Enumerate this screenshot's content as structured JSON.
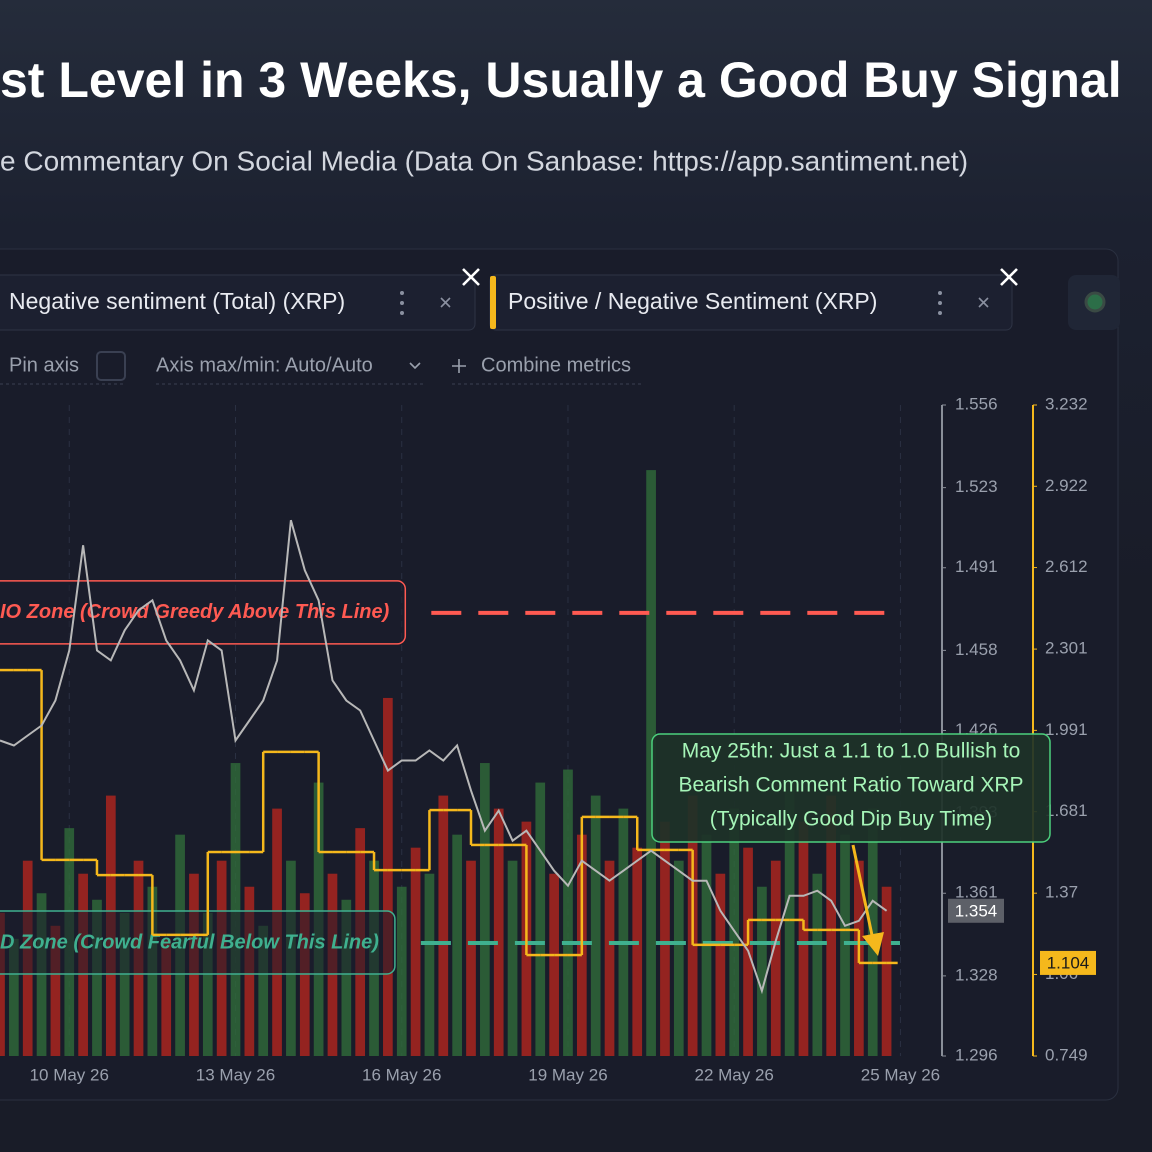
{
  "title": "st Level in 3 Weeks, Usually a Good Buy Signal",
  "subtitle": "e Commentary On Social Media (Data On Sanbase: https://app.santiment.net)",
  "toolbar": {
    "pin_axis": "Pin axis",
    "axis_minmax": "Axis max/min: Auto/Auto",
    "combine": "Combine metrics"
  },
  "callout": {
    "lines": [
      "May 25th: Just a 1.1 to 1.0 Bullish to",
      "Bearish Comment Ratio Toward XRP",
      "(Typically Good Dip Buy Time)"
    ]
  },
  "chart_data": {
    "type": "line",
    "x": [
      0,
      1,
      2,
      3,
      4,
      5,
      6,
      7,
      8,
      9,
      10,
      11,
      12,
      13,
      14,
      15,
      16,
      17,
      18,
      19,
      20,
      21,
      22,
      23,
      24,
      25,
      26,
      27,
      28,
      29,
      30,
      31,
      32,
      33,
      34,
      35,
      36,
      37,
      38,
      39,
      40,
      41,
      42,
      43,
      44,
      45,
      46,
      47,
      48,
      49,
      50,
      51,
      52,
      53,
      54,
      55,
      56,
      57,
      58,
      59,
      60,
      61,
      62,
      63,
      64
    ],
    "xlim": [
      0,
      68
    ],
    "xticks": [
      {
        "value": 5,
        "label": "10 May 26"
      },
      {
        "value": 17,
        "label": "13 May 26"
      },
      {
        "value": 29,
        "label": "16 May 26"
      },
      {
        "value": 41,
        "label": "19 May 26"
      },
      {
        "value": 53,
        "label": "22 May 26"
      },
      {
        "value": 65,
        "label": "25 May 26"
      }
    ],
    "ylim": [
      1.296,
      1.556
    ],
    "yticks": [
      1.296,
      1.328,
      1.361,
      1.393,
      1.426,
      1.458,
      1.491,
      1.523,
      1.556
    ],
    "y2lim": [
      0.749,
      3.232
    ],
    "y2ticks": [
      0.749,
      1.06,
      1.37,
      1.681,
      1.991,
      2.301,
      2.612,
      2.922,
      3.232
    ],
    "y3lim": [
      0,
      100
    ],
    "grid": true,
    "series": [
      {
        "name": "Negative sentiment (Total) (XRP)",
        "type": "bar",
        "axis": "y3",
        "colors": [
          "#b3261e",
          "#2f6b3a"
        ],
        "values": [
          22,
          18,
          30,
          25,
          20,
          35,
          28,
          24,
          40,
          22,
          30,
          26,
          18,
          34,
          28,
          22,
          30,
          45,
          26,
          20,
          38,
          30,
          25,
          42,
          28,
          24,
          35,
          30,
          55,
          26,
          32,
          28,
          40,
          34,
          30,
          45,
          38,
          30,
          36,
          42,
          28,
          44,
          34,
          40,
          30,
          38,
          32,
          90,
          36,
          30,
          40,
          34,
          28,
          38,
          32,
          26,
          30,
          42,
          36,
          28,
          40,
          34,
          30,
          38,
          26
        ]
      },
      {
        "name": "Positive / Negative Sentiment (XRP)",
        "type": "step",
        "axis": "y2",
        "color": "#f5b81c",
        "values": [
          2.221,
          2.221,
          2.221,
          1.497,
          1.497,
          1.497,
          1.497,
          1.439,
          1.439,
          1.439,
          1.439,
          1.211,
          1.211,
          1.211,
          1.211,
          1.527,
          1.527,
          1.527,
          1.527,
          1.909,
          1.909,
          1.909,
          1.909,
          1.527,
          1.527,
          1.527,
          1.527,
          1.458,
          1.458,
          1.458,
          1.458,
          1.687,
          1.687,
          1.687,
          1.554,
          1.554,
          1.554,
          1.554,
          1.134,
          1.134,
          1.134,
          1.134,
          1.661,
          1.661,
          1.661,
          1.661,
          1.535,
          1.535,
          1.535,
          1.535,
          1.173,
          1.173,
          1.173,
          1.173,
          1.268,
          1.268,
          1.268,
          1.268,
          1.23,
          1.23,
          1.23,
          1.23,
          1.104,
          1.104,
          1.104
        ]
      },
      {
        "type": "line",
        "axis": "y",
        "color": "#b8b8b8",
        "values": [
          1.422,
          1.42,
          1.424,
          1.428,
          1.438,
          1.458,
          1.5,
          1.458,
          1.454,
          1.466,
          1.474,
          1.478,
          1.462,
          1.454,
          1.442,
          1.462,
          1.458,
          1.422,
          1.43,
          1.438,
          1.454,
          1.51,
          1.49,
          1.478,
          1.446,
          1.438,
          1.434,
          1.422,
          1.41,
          1.414,
          1.414,
          1.418,
          1.414,
          1.42,
          1.402,
          1.386,
          1.394,
          1.382,
          1.386,
          1.378,
          1.37,
          1.364,
          1.374,
          1.37,
          1.366,
          1.37,
          1.374,
          1.378,
          1.374,
          1.37,
          1.366,
          1.366,
          1.354,
          1.346,
          1.338,
          1.322,
          1.342,
          1.36,
          1.36,
          1.362,
          1.358,
          1.348,
          1.35,
          1.358,
          1.354
        ]
      }
    ],
    "annotations": [
      {
        "text": "IO Zone (Crowd Greedy Above This Line)",
        "y2": 2.439,
        "color": "#ff5a52"
      },
      {
        "text": "D Zone (Crowd Fearful Below This Line)",
        "y2": 1.18,
        "color": "#3fb08f"
      }
    ]
  }
}
